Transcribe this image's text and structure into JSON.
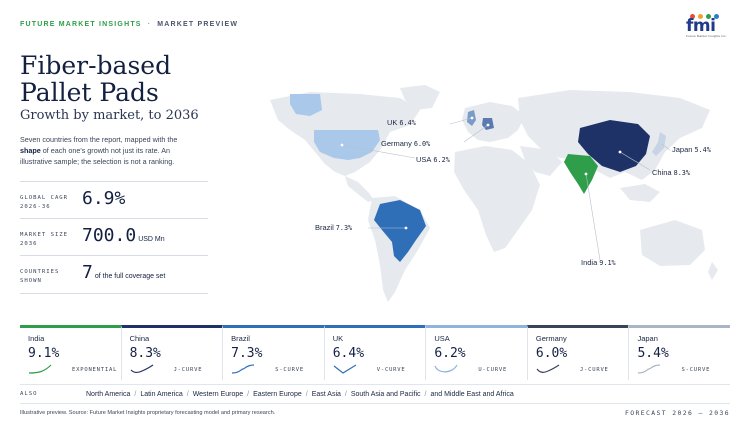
{
  "header": {
    "brand": "FUTURE MARKET INSIGHTS",
    "separator": "·",
    "section": "MARKET PREVIEW",
    "logo_text": "fmi",
    "logo_tagline": "Future Market Insights Inc.",
    "logo_dot_colors": [
      "#e94b3c",
      "#f2a12e",
      "#2e9e4a",
      "#2b7cd3"
    ]
  },
  "title": "Fiber-based Pallet Pads",
  "subtitle": "Growth by market, to 2036",
  "description": {
    "before": "Seven countries from the report, mapped with the ",
    "emphasis": "shape",
    "after": " of each one's growth not just its rate. An illustrative sample; the selection is not a ranking."
  },
  "stats": [
    {
      "label": "GLOBAL CAGR 2026-36",
      "value": "6.9%",
      "unit": ""
    },
    {
      "label": "MARKET SIZE 2036",
      "value": "700.0",
      "unit": "USD Mn"
    },
    {
      "label": "COUNTRIES SHOWN",
      "value": "7",
      "unit": "of the full coverage set"
    }
  ],
  "map": {
    "labels": [
      {
        "name": "UK",
        "pct": "6.4%"
      },
      {
        "name": "Germany",
        "pct": "6.0%"
      },
      {
        "name": "USA",
        "pct": "6.2%"
      },
      {
        "name": "Japan",
        "pct": "5.4%"
      },
      {
        "name": "China",
        "pct": "8.3%"
      },
      {
        "name": "Brazil",
        "pct": "7.3%"
      },
      {
        "name": "India",
        "pct": "9.1%"
      }
    ],
    "colors": {
      "land": "#e6e9ee",
      "india": "#2e9e4a",
      "china": "#1f3268",
      "brazil": "#2f6fb8",
      "usa": "#a9c8ea",
      "uk": "#7a9cc8",
      "germany": "#5b7bb0",
      "japan": "#c7d4e6"
    }
  },
  "cards": [
    {
      "name": "India",
      "value": "9.1%",
      "curve": "EXPONENTIAL",
      "color": "#2e9e4a",
      "shape": "exponential"
    },
    {
      "name": "China",
      "value": "8.3%",
      "curve": "J-CURVE",
      "color": "#1f3268",
      "shape": "j"
    },
    {
      "name": "Brazil",
      "value": "7.3%",
      "curve": "S-CURVE",
      "color": "#2f6fb8",
      "shape": "s"
    },
    {
      "name": "UK",
      "value": "6.4%",
      "curve": "V-CURVE",
      "color": "#2f6fb8",
      "shape": "v"
    },
    {
      "name": "USA",
      "value": "6.2%",
      "curve": "U-CURVE",
      "color": "#8fb3de",
      "shape": "u"
    },
    {
      "name": "Germany",
      "value": "6.0%",
      "curve": "J-CURVE",
      "color": "#3a4458",
      "shape": "j"
    },
    {
      "name": "Japan",
      "value": "5.4%",
      "curve": "S-CURVE",
      "color": "#a9b4c6",
      "shape": "s"
    }
  ],
  "also": {
    "label": "ALSO",
    "regions": [
      "North America",
      "Latin America",
      "Western Europe",
      "Eastern Europe",
      "East Asia",
      "South Asia and Pacific",
      "and Middle East and Africa"
    ]
  },
  "footer": {
    "note": "Illustrative preview. Source: Future Market Insights proprietary forecasting model and primary research.",
    "forecast": "FORECAST 2026 – 2036"
  }
}
